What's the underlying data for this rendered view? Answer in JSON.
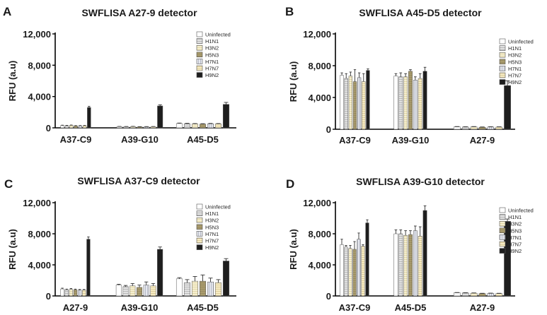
{
  "legend_labels": [
    "Uninfected",
    "H1N1",
    "H3N2",
    "H5N3",
    "H7N1",
    "H7N7",
    "H9N2"
  ],
  "colors": {
    "axis": "#000000",
    "text": "#1a1a1a",
    "error": "#333333",
    "series_fills": [
      "#ffffff",
      "#dedede",
      "#f4ecca",
      "#a89a6c",
      "#d8dce6",
      "#f5e9c0",
      "#1e1e1e"
    ]
  },
  "chart_data": [
    {
      "id": "A",
      "type": "bar",
      "panel_label": "A",
      "title": "SWFLISA A27-9 detector",
      "ylabel": "RFU (a.u)",
      "xlabel": "",
      "ylim": [
        0,
        12000
      ],
      "yticks": [
        0,
        4000,
        8000,
        12000
      ],
      "ytick_labels": [
        "0",
        "4,000",
        "8,000",
        "12,000"
      ],
      "categories": [
        "A37-C9",
        "A39-G10",
        "A45-D5"
      ],
      "series": [
        {
          "name": "Uninfected",
          "values": [
            300,
            150,
            550
          ],
          "errors": [
            40,
            30,
            60
          ]
        },
        {
          "name": "H1N1",
          "values": [
            280,
            140,
            520
          ],
          "errors": [
            40,
            30,
            60
          ]
        },
        {
          "name": "H3N2",
          "values": [
            320,
            160,
            500
          ],
          "errors": [
            40,
            30,
            50
          ]
        },
        {
          "name": "H5N3",
          "values": [
            250,
            120,
            480
          ],
          "errors": [
            40,
            30,
            50
          ]
        },
        {
          "name": "H7N1",
          "values": [
            260,
            130,
            520
          ],
          "errors": [
            40,
            30,
            50
          ]
        },
        {
          "name": "H7N7",
          "values": [
            270,
            140,
            500
          ],
          "errors": [
            40,
            30,
            50
          ]
        },
        {
          "name": "H9N2",
          "values": [
            2600,
            2800,
            3000
          ],
          "errors": [
            150,
            150,
            250
          ]
        }
      ]
    },
    {
      "id": "B",
      "type": "bar",
      "panel_label": "B",
      "title": "SWFLISA A45-D5 detector",
      "ylabel": "RFU (a.u)",
      "xlabel": "",
      "ylim": [
        0,
        12000
      ],
      "yticks": [
        0,
        4000,
        8000,
        12000
      ],
      "ytick_labels": [
        "0",
        "4,000",
        "8,000",
        "12,000"
      ],
      "categories": [
        "A37-C9",
        "A39-G10",
        "A27-9"
      ],
      "series": [
        {
          "name": "Uninfected",
          "values": [
            6800,
            6700,
            300
          ],
          "errors": [
            300,
            300,
            40
          ]
        },
        {
          "name": "H1N1",
          "values": [
            6400,
            6600,
            280
          ],
          "errors": [
            600,
            500,
            40
          ]
        },
        {
          "name": "H3N2",
          "values": [
            6700,
            6600,
            300
          ],
          "errors": [
            500,
            400,
            40
          ]
        },
        {
          "name": "H5N3",
          "values": [
            6000,
            7300,
            250
          ],
          "errors": [
            1500,
            200,
            40
          ]
        },
        {
          "name": "H7N1",
          "values": [
            6500,
            6200,
            280
          ],
          "errors": [
            600,
            400,
            40
          ]
        },
        {
          "name": "H7N7",
          "values": [
            6000,
            6400,
            270
          ],
          "errors": [
            1000,
            600,
            40
          ]
        },
        {
          "name": "H9N2",
          "values": [
            7400,
            7300,
            5500
          ],
          "errors": [
            200,
            500,
            600
          ]
        }
      ]
    },
    {
      "id": "C",
      "type": "bar",
      "panel_label": "C",
      "title": "SWFLISA A37-C9 detector",
      "ylabel": "RFU (a.u)",
      "xlabel": "",
      "ylim": [
        0,
        12000
      ],
      "yticks": [
        0,
        4000,
        8000,
        12000
      ],
      "ytick_labels": [
        "0",
        "4,000",
        "8,000",
        "12,000"
      ],
      "categories": [
        "A27-9",
        "A39-G10",
        "A45-D5"
      ],
      "series": [
        {
          "name": "Uninfected",
          "values": [
            900,
            1400,
            2200
          ],
          "errors": [
            100,
            100,
            150
          ]
        },
        {
          "name": "H1N1",
          "values": [
            800,
            1200,
            1700
          ],
          "errors": [
            80,
            150,
            400
          ]
        },
        {
          "name": "H3N2",
          "values": [
            850,
            1300,
            1900
          ],
          "errors": [
            100,
            300,
            600
          ]
        },
        {
          "name": "H5N3",
          "values": [
            800,
            1100,
            1900
          ],
          "errors": [
            80,
            300,
            800
          ]
        },
        {
          "name": "H7N1",
          "values": [
            750,
            1400,
            1800
          ],
          "errors": [
            80,
            400,
            500
          ]
        },
        {
          "name": "H7N7",
          "values": [
            750,
            1300,
            1700
          ],
          "errors": [
            80,
            300,
            400
          ]
        },
        {
          "name": "H9N2",
          "values": [
            7300,
            6000,
            4500
          ],
          "errors": [
            300,
            300,
            300
          ]
        }
      ]
    },
    {
      "id": "D",
      "type": "bar",
      "panel_label": "D",
      "title": "SWFLISA A39-G10 detector",
      "ylabel": "RFU (a.u)",
      "xlabel": "",
      "ylim": [
        0,
        12000
      ],
      "yticks": [
        0,
        4000,
        8000,
        12000
      ],
      "ytick_labels": [
        "0",
        "4,000",
        "8,000",
        "12,000"
      ],
      "categories": [
        "A37-C9",
        "A45-D5",
        "A27-9"
      ],
      "series": [
        {
          "name": "Uninfected",
          "values": [
            6600,
            8000,
            400
          ],
          "errors": [
            700,
            500,
            40
          ]
        },
        {
          "name": "H1N1",
          "values": [
            6300,
            8000,
            380
          ],
          "errors": [
            200,
            500,
            40
          ]
        },
        {
          "name": "H3N2",
          "values": [
            6100,
            7800,
            350
          ],
          "errors": [
            400,
            600,
            40
          ]
        },
        {
          "name": "H5N3",
          "values": [
            6000,
            7900,
            300
          ],
          "errors": [
            1000,
            500,
            40
          ]
        },
        {
          "name": "H7N1",
          "values": [
            7300,
            8400,
            320
          ],
          "errors": [
            800,
            600,
            40
          ]
        },
        {
          "name": "H7N7",
          "values": [
            6400,
            7700,
            300
          ],
          "errors": [
            200,
            1200,
            40
          ]
        },
        {
          "name": "H9N2",
          "values": [
            9400,
            11000,
            9600
          ],
          "errors": [
            400,
            600,
            300
          ]
        }
      ]
    }
  ]
}
